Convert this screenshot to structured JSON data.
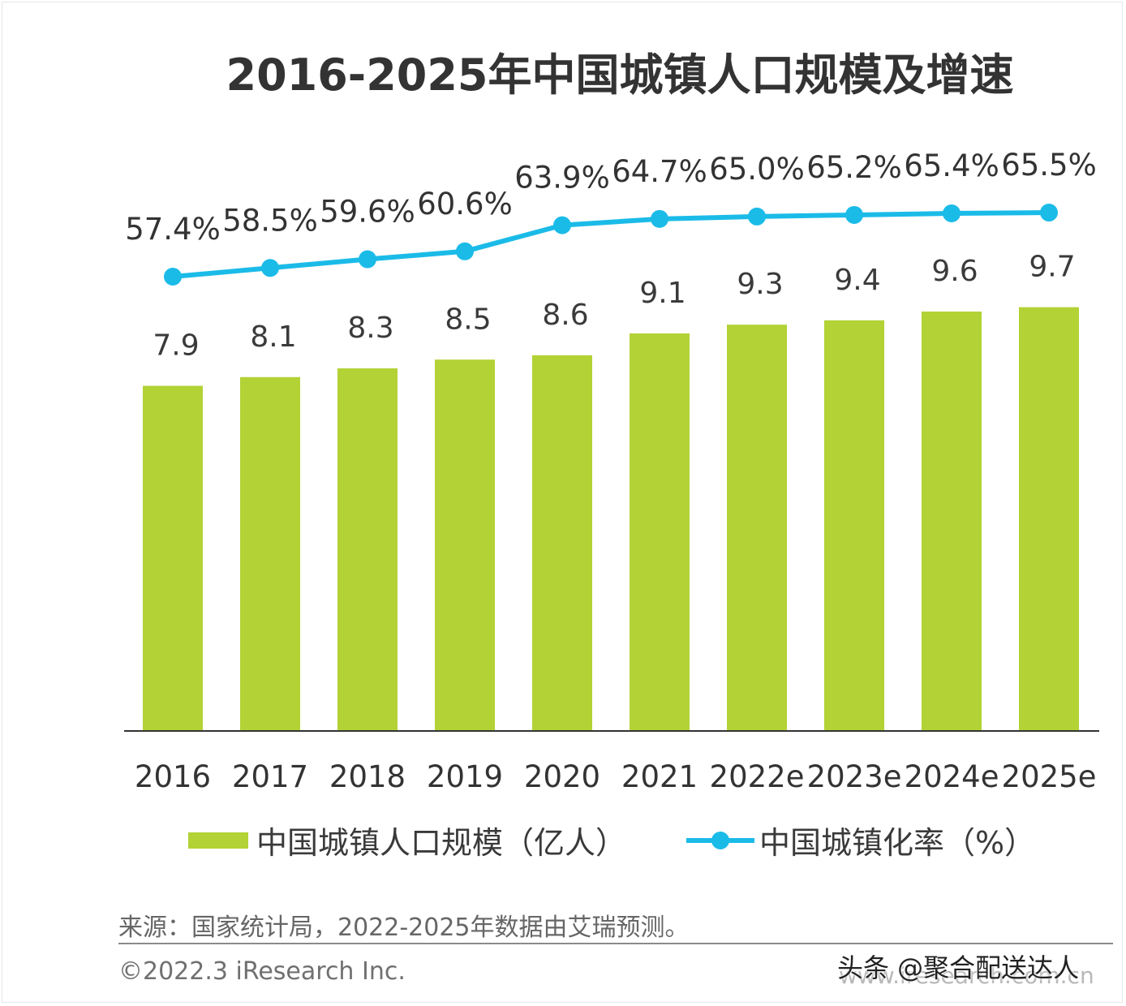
{
  "chart_data": {
    "type": "bar",
    "title": "2016-2025年中国城镇人口规模及增速",
    "categories": [
      "2016",
      "2017",
      "2018",
      "2019",
      "2020",
      "2021",
      "2022e",
      "2023e",
      "2024e",
      "2025e"
    ],
    "series": [
      {
        "name": "中国城镇人口规模（亿人）",
        "type": "bar",
        "values": [
          7.9,
          8.1,
          8.3,
          8.5,
          8.6,
          9.1,
          9.3,
          9.4,
          9.6,
          9.7
        ],
        "labels": [
          "7.9",
          "8.1",
          "8.3",
          "8.5",
          "8.6",
          "9.1",
          "9.3",
          "9.4",
          "9.6",
          "9.7"
        ],
        "color": "#b2d235"
      },
      {
        "name": "中国城镇化率（%）",
        "type": "line",
        "values": [
          57.4,
          58.5,
          59.6,
          60.6,
          63.9,
          64.7,
          65.0,
          65.2,
          65.4,
          65.5
        ],
        "labels": [
          "57.4%",
          "58.5%",
          "59.6%",
          "60.6%",
          "63.9%",
          "64.7%",
          "65.0%",
          "65.2%",
          "65.4%",
          "65.5%"
        ],
        "color": "#1bbbe8"
      }
    ],
    "legend": {
      "position": "bottom",
      "bar_label": "中国城镇人口规模（亿人）",
      "line_label": "中国城镇化率（%）"
    },
    "grid": false
  },
  "footer": {
    "source": "来源：国家统计局，2022-2025年数据由艾瑞预测。",
    "copyright": "©2022.3 iResearch Inc.",
    "watermark": "头条 @聚合配送达人",
    "watermark_bg": "www.iresearch.com.cn"
  }
}
